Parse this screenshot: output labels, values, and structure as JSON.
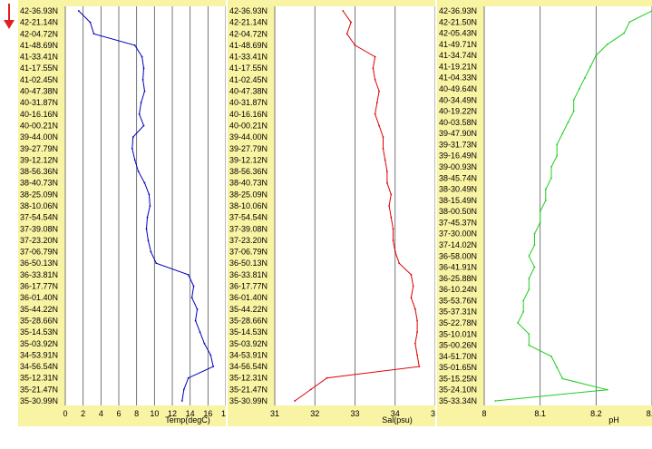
{
  "ui": {
    "direction_icon": "down-arrow-icon",
    "arrow_color": "#e02020",
    "panel_bg": "#f9f3a4"
  },
  "chart_data": [
    {
      "type": "line",
      "xlabel": "Temp(degC)",
      "xlim": [
        0,
        18
      ],
      "xticks": [
        "0",
        "2",
        "4",
        "6",
        "8",
        "10",
        "12",
        "14",
        "16",
        "18"
      ],
      "color": "#0000bb",
      "grid": true,
      "y_labels": [
        "42-36.93N",
        "42-21.14N",
        "42-04.72N",
        "41-48.69N",
        "41-33.41N",
        "41-17.55N",
        "41-02.45N",
        "40-47.38N",
        "40-31.87N",
        "40-16.16N",
        "40-00.21N",
        "39-44.00N",
        "39-27.79N",
        "39-12.12N",
        "38-56.36N",
        "38-40.73N",
        "38-25.09N",
        "38-10.06N",
        "37-54.54N",
        "37-39.08N",
        "37-23.20N",
        "37-06.79N",
        "36-50.13N",
        "36-33.81N",
        "36-17.77N",
        "36-01.40N",
        "35-44.22N",
        "35-28.66N",
        "35-14.53N",
        "35-03.92N",
        "34-53.91N",
        "34-56.54N",
        "35-12.31N",
        "35-21.47N",
        "35-30.99N"
      ],
      "values": [
        1.5,
        2.8,
        3.2,
        7.8,
        8.6,
        8.8,
        8.7,
        8.9,
        8.5,
        8.3,
        8.8,
        7.6,
        7.5,
        7.8,
        8.2,
        8.9,
        9.4,
        9.5,
        9.2,
        9.1,
        9.3,
        9.6,
        10.2,
        13.8,
        14.4,
        14.2,
        14.8,
        14.6,
        15.1,
        15.6,
        16.3,
        16.6,
        13.8,
        13.3,
        13.1
      ]
    },
    {
      "type": "line",
      "xlabel": "Sal(psu)",
      "xlim": [
        31,
        35
      ],
      "xticks": [
        "31",
        "32",
        "33",
        "34",
        "35"
      ],
      "color": "#dd0000",
      "grid": true,
      "y_labels": [
        "42-36.93N",
        "42-21.14N",
        "42-04.72N",
        "41-48.69N",
        "41-33.41N",
        "41-17.55N",
        "41-02.45N",
        "40-47.38N",
        "40-31.87N",
        "40-16.16N",
        "40-00.21N",
        "39-44.00N",
        "39-27.79N",
        "39-12.12N",
        "38-56.36N",
        "38-40.73N",
        "38-25.09N",
        "38-10.06N",
        "37-54.54N",
        "37-39.08N",
        "37-23.20N",
        "37-06.79N",
        "36-50.13N",
        "36-33.81N",
        "36-17.77N",
        "36-01.40N",
        "35-44.22N",
        "35-28.66N",
        "35-14.53N",
        "35-03.92N",
        "34-53.91N",
        "34-56.54N",
        "35-12.31N",
        "35-21.47N",
        "35-30.99N"
      ],
      "values": [
        32.7,
        32.9,
        32.8,
        33.0,
        33.5,
        33.45,
        33.5,
        33.6,
        33.55,
        33.5,
        33.6,
        33.7,
        33.7,
        33.75,
        33.8,
        33.8,
        33.9,
        33.85,
        33.9,
        33.95,
        33.95,
        34.0,
        34.1,
        34.4,
        34.45,
        34.4,
        34.5,
        34.55,
        34.55,
        34.5,
        34.55,
        34.6,
        32.3,
        31.9,
        31.5
      ]
    },
    {
      "type": "line",
      "xlabel": "pH",
      "xlim": [
        8,
        8.3
      ],
      "xticks": [
        "8",
        "8.1",
        "8.2",
        "8.3"
      ],
      "color": "#22cc22",
      "grid": true,
      "y_labels": [
        "42-36.93N",
        "42-21.50N",
        "42-05.43N",
        "41-49.71N",
        "41-34.74N",
        "41-19.21N",
        "41-04.33N",
        "40-49.64N",
        "40-34.49N",
        "40-19.22N",
        "40-03.58N",
        "39-47.90N",
        "39-31.73N",
        "39-16.49N",
        "39-00.93N",
        "38-45.74N",
        "38-30.49N",
        "38-15.49N",
        "38-00.50N",
        "37-45.37N",
        "37-30.00N",
        "37-14.02N",
        "36-58.00N",
        "36-41.91N",
        "36-25.88N",
        "36-10.24N",
        "35-53.76N",
        "35-37.31N",
        "35-22.78N",
        "35-10.01N",
        "35-00.26N",
        "34-51.70N",
        "35-01.65N",
        "35-15.25N",
        "35-24.10N",
        "35-33.34N"
      ],
      "values": [
        8.3,
        8.26,
        8.25,
        8.22,
        8.2,
        8.19,
        8.18,
        8.17,
        8.16,
        8.16,
        8.15,
        8.14,
        8.13,
        8.13,
        8.12,
        8.12,
        8.11,
        8.11,
        8.1,
        8.1,
        8.09,
        8.09,
        8.08,
        8.09,
        8.08,
        8.08,
        8.07,
        8.07,
        8.06,
        8.08,
        8.08,
        8.12,
        8.13,
        8.14,
        8.22,
        8.02
      ]
    }
  ]
}
